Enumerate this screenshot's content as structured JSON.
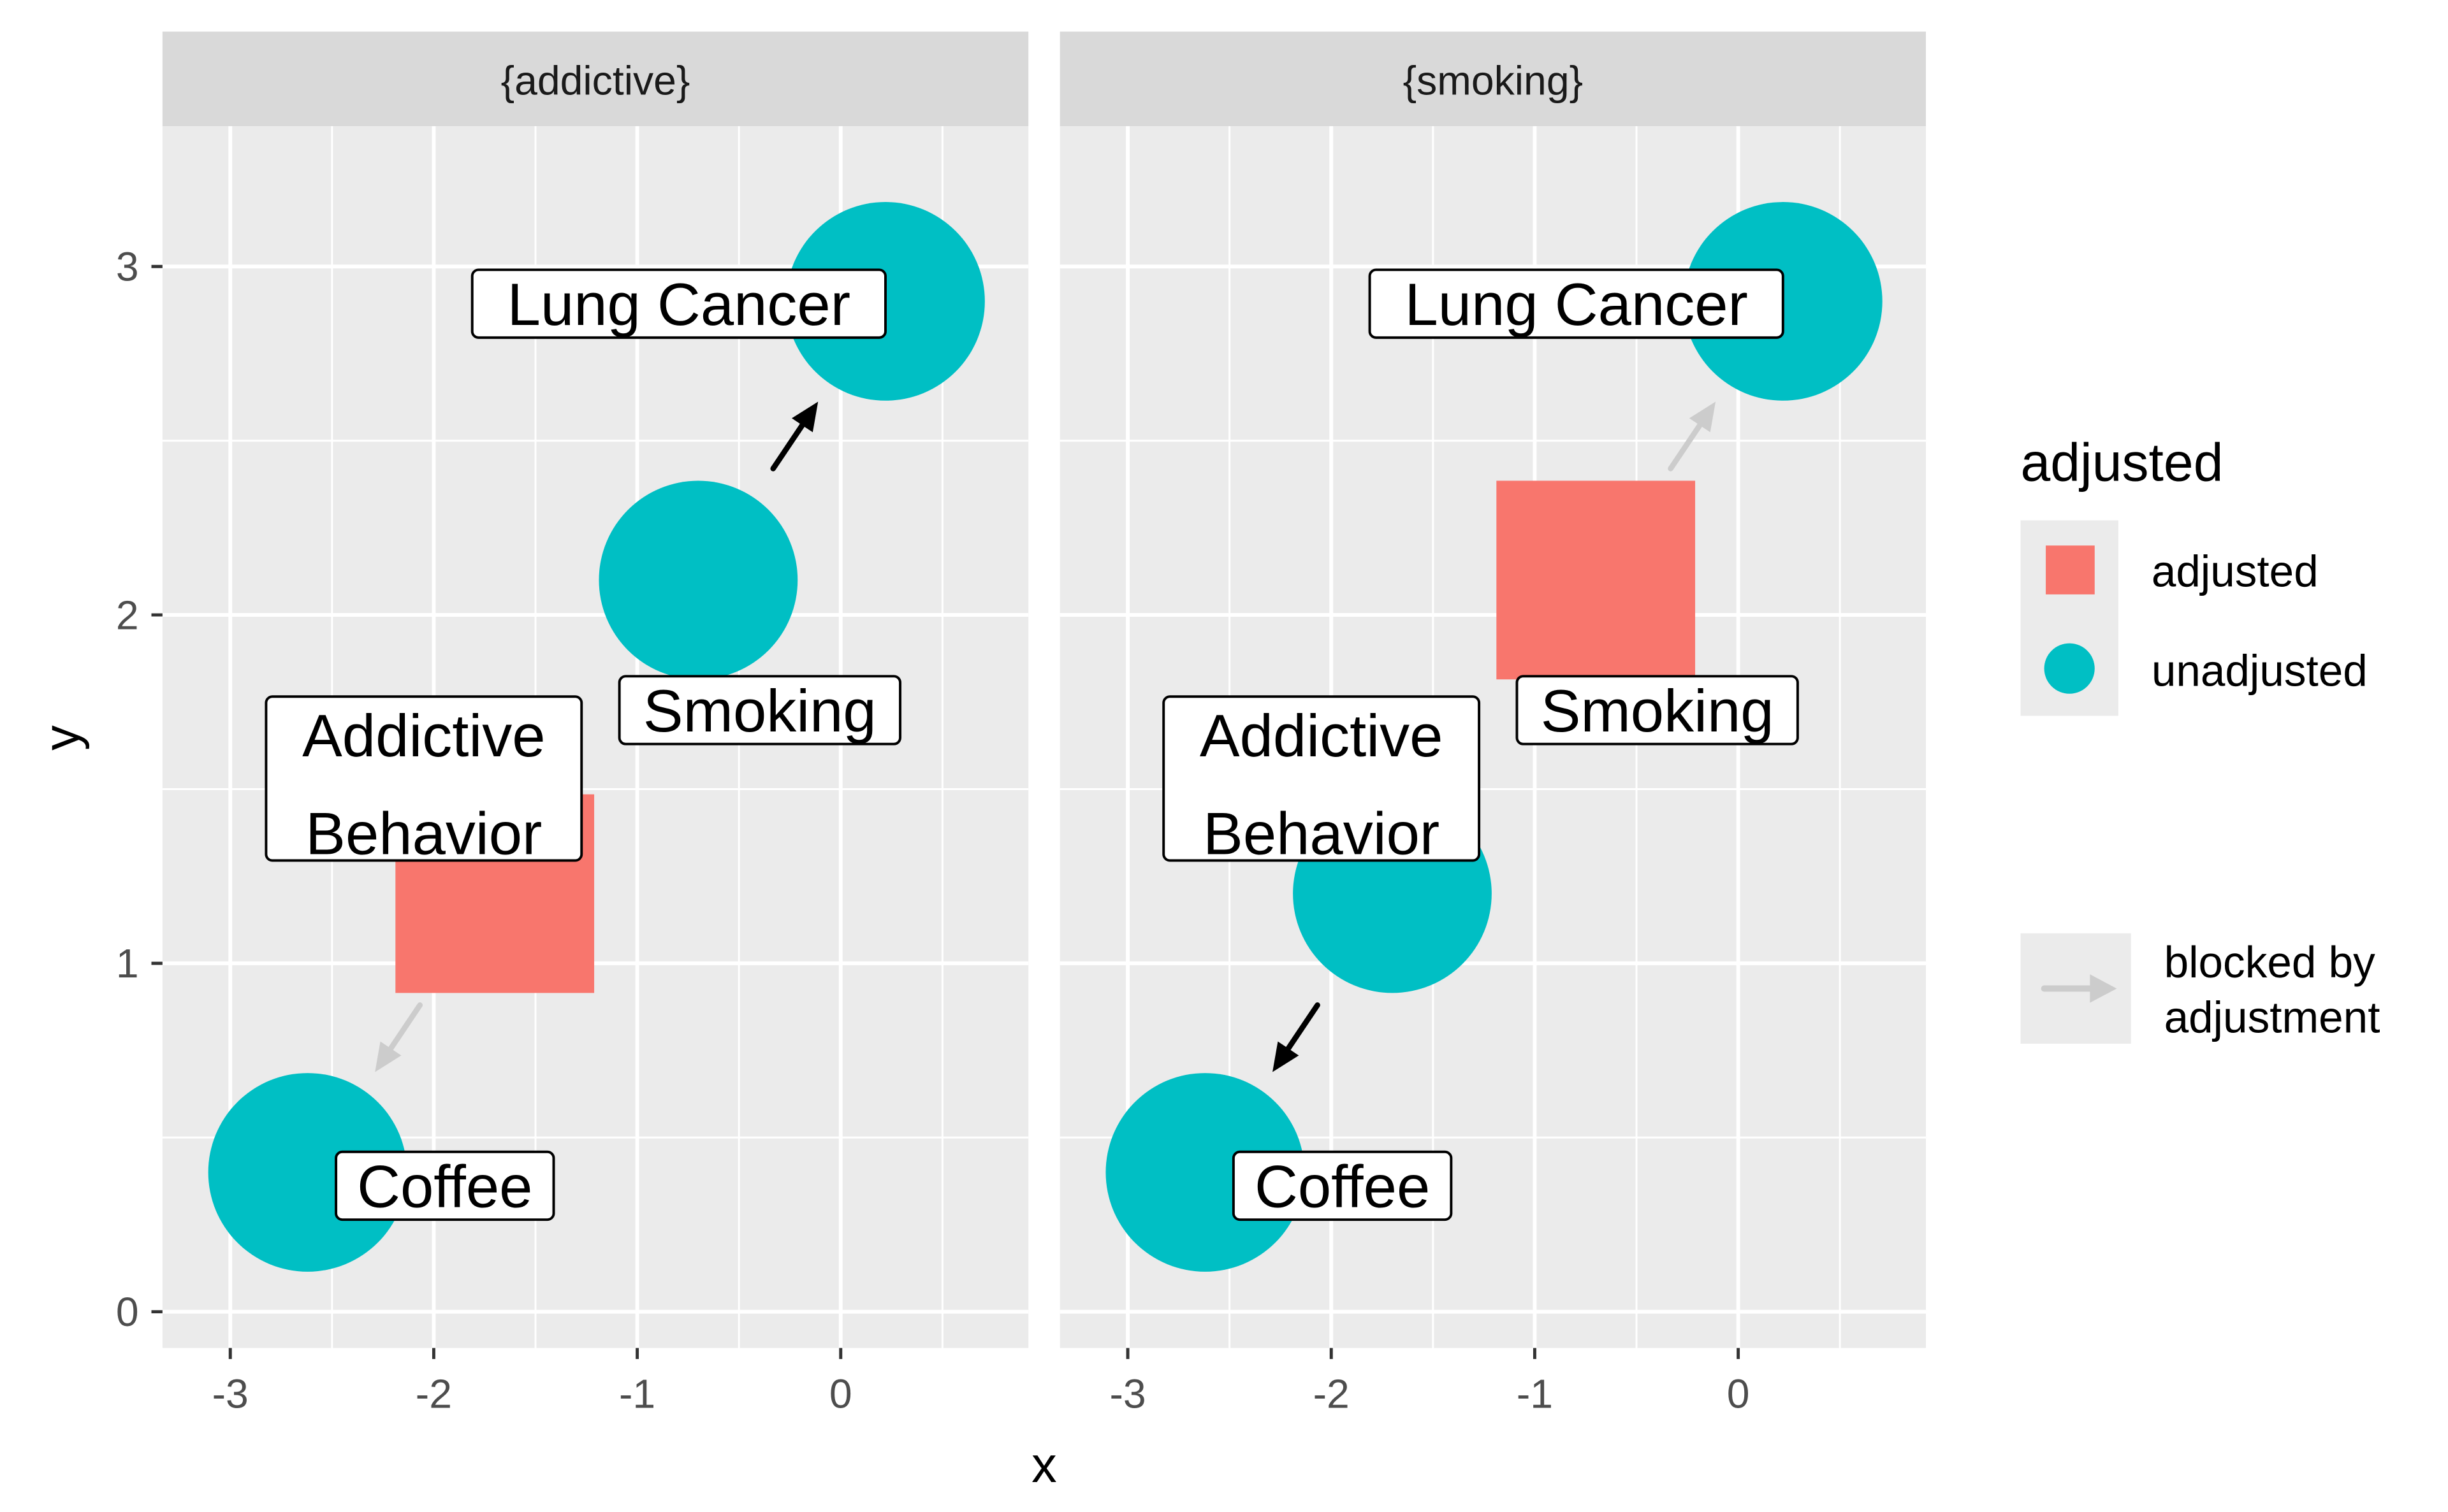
{
  "chart_data": {
    "type": "scatter",
    "subtype": "dag",
    "xlabel": "x",
    "ylabel": "y",
    "xlim": [
      -3.34,
      0.91
    ],
    "ylim": [
      -0.1,
      3.4
    ],
    "x_ticks": [
      -3,
      -2,
      -1,
      0
    ],
    "x_tick_labels": [
      "-3",
      "-2",
      "-1",
      "0"
    ],
    "y_ticks": [
      0,
      1,
      2,
      3
    ],
    "y_tick_labels": [
      "0",
      "1",
      "2",
      "3"
    ],
    "grid": true,
    "legend_position": "right",
    "panels": [
      {
        "facet": "{addictive}",
        "nodes": [
          {
            "name": "Lung Cancer",
            "x": 0.22,
            "y": 2.9,
            "status": "unadjusted"
          },
          {
            "name": "Smoking",
            "x": -0.7,
            "y": 2.1,
            "status": "unadjusted"
          },
          {
            "name": "Addictive Behavior",
            "x": -1.7,
            "y": 1.2,
            "status": "adjusted"
          },
          {
            "name": "Coffee",
            "x": -2.62,
            "y": 0.4,
            "status": "unadjusted"
          }
        ],
        "edges": [
          {
            "from": "Smoking",
            "to": "Lung Cancer",
            "blocked": false
          },
          {
            "from": "Addictive Behavior",
            "to": "Coffee",
            "blocked": true
          }
        ]
      },
      {
        "facet": "{smoking}",
        "nodes": [
          {
            "name": "Lung Cancer",
            "x": 0.22,
            "y": 2.9,
            "status": "unadjusted"
          },
          {
            "name": "Smoking",
            "x": -0.7,
            "y": 2.1,
            "status": "adjusted"
          },
          {
            "name": "Addictive Behavior",
            "x": -1.7,
            "y": 1.2,
            "status": "unadjusted"
          },
          {
            "name": "Coffee",
            "x": -2.62,
            "y": 0.4,
            "status": "unadjusted"
          }
        ],
        "edges": [
          {
            "from": "Smoking",
            "to": "Lung Cancer",
            "blocked": true
          },
          {
            "from": "Addictive Behavior",
            "to": "Coffee",
            "blocked": false
          }
        ]
      }
    ],
    "legend": {
      "title": "adjusted",
      "entries": [
        {
          "label": "adjusted",
          "shape": "square",
          "color": "#F8766D"
        },
        {
          "label": "unadjusted",
          "shape": "circle",
          "color": "#00BFC4"
        }
      ],
      "edge_entry": {
        "line1": "blocked by",
        "line2": "adjustment",
        "color": "#CCCCCC"
      }
    }
  },
  "colors": {
    "adjusted": "#F8766D",
    "unadjusted": "#00BFC4",
    "panel_bg": "#EBEBEB",
    "strip_bg": "#D9D9D9",
    "grid": "#FFFFFF",
    "edge_active": "#000000",
    "edge_blocked": "#CCCCCC"
  }
}
